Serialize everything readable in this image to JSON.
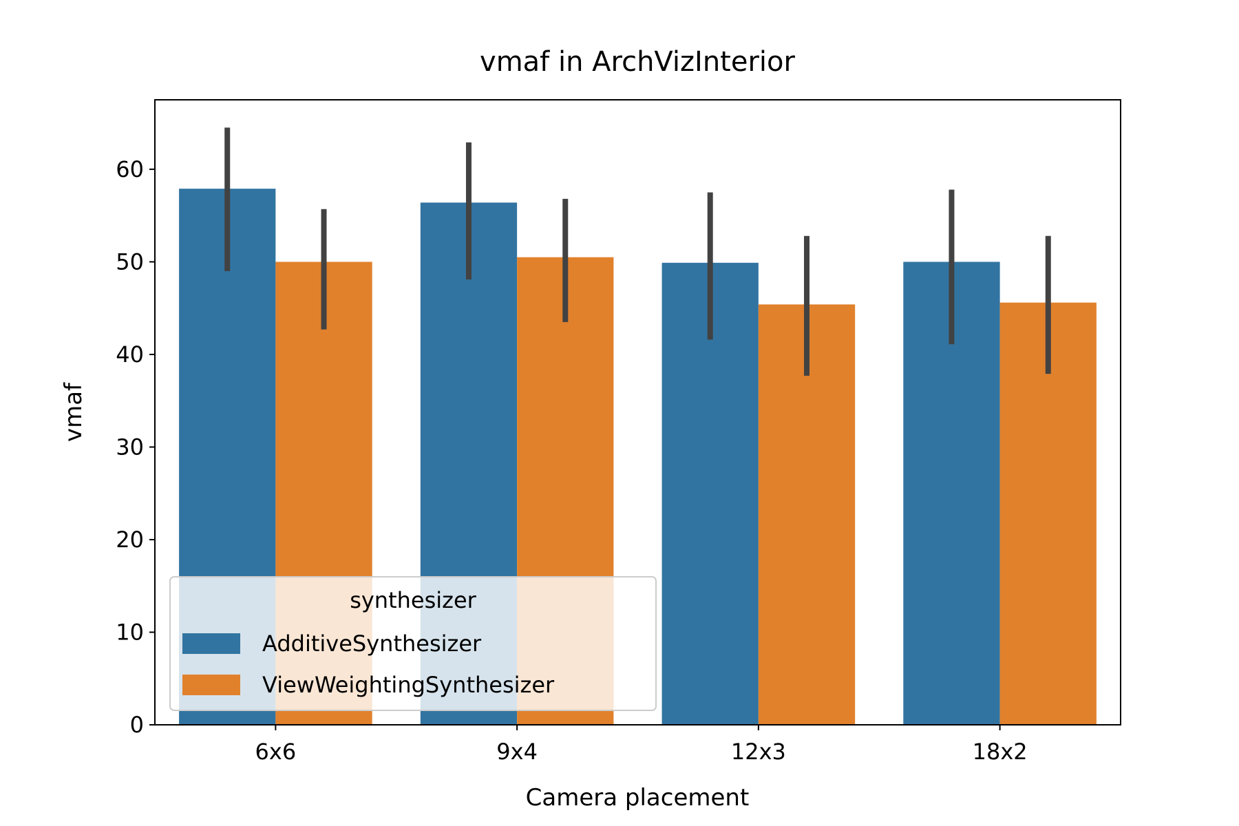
{
  "chart_data": {
    "type": "bar",
    "title": "vmaf in ArchVizInterior",
    "xlabel": "Camera placement",
    "ylabel": "vmaf",
    "categories": [
      "6x6",
      "9x4",
      "12x3",
      "18x2"
    ],
    "ylim": [
      0,
      67.5
    ],
    "yticks": [
      0,
      10,
      20,
      30,
      40,
      50,
      60
    ],
    "grid": false,
    "series": [
      {
        "name": "AdditiveSynthesizer",
        "color": "#3274a1",
        "values": [
          57.9,
          56.4,
          49.9,
          50.0
        ],
        "error_low": [
          49.0,
          48.1,
          41.6,
          41.1
        ],
        "error_high": [
          64.5,
          62.9,
          57.5,
          57.8
        ]
      },
      {
        "name": "ViewWeightingSynthesizer",
        "color": "#e1812c",
        "values": [
          50.0,
          50.5,
          45.4,
          45.6
        ],
        "error_low": [
          42.7,
          43.5,
          37.7,
          37.9
        ],
        "error_high": [
          55.7,
          56.8,
          52.8,
          52.8
        ]
      }
    ],
    "legend": {
      "title": "synthesizer",
      "placement": "lower-left"
    }
  }
}
